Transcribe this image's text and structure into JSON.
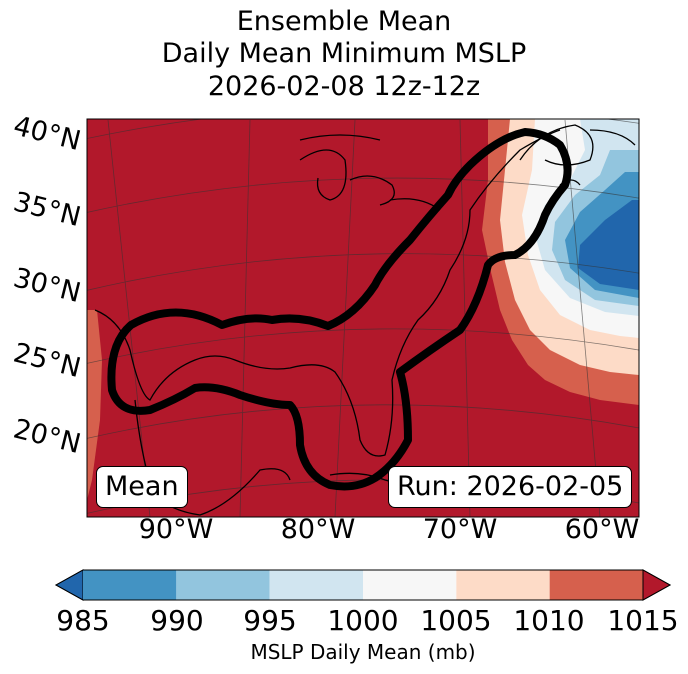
{
  "title": {
    "line1": "Ensemble Mean",
    "line2": "Daily Mean Minimum MSLP",
    "line3": "2026-02-08 12z-12z"
  },
  "map": {
    "lat_labels": [
      "40°N",
      "35°N",
      "30°N",
      "25°N",
      "20°N"
    ],
    "lon_labels": [
      "90°W",
      "80°W",
      "70°W",
      "60°W"
    ],
    "left_box": "Mean",
    "right_box": "Run: 2026-02-05",
    "fill_colors": {
      "1015+": "#b2182b",
      "1010-1015": "#d6604d",
      "1005-1010": "#fddbc7",
      "1000-1005": "#f7f7f7",
      "995-1000": "#d1e5f0",
      "990-995": "#92c5de",
      "985-990": "#4393c3",
      "<985": "#2166ac"
    }
  },
  "colorbar": {
    "ticks": [
      "985",
      "990",
      "995",
      "1000",
      "1005",
      "1010",
      "1015"
    ],
    "label": "MSLP Daily Mean (mb)",
    "colors": [
      "#4393c3",
      "#92c5de",
      "#d1e5f0",
      "#f7f7f7",
      "#fddbc7",
      "#d6604d"
    ],
    "under_color": "#2166ac",
    "over_color": "#b2182b"
  }
}
